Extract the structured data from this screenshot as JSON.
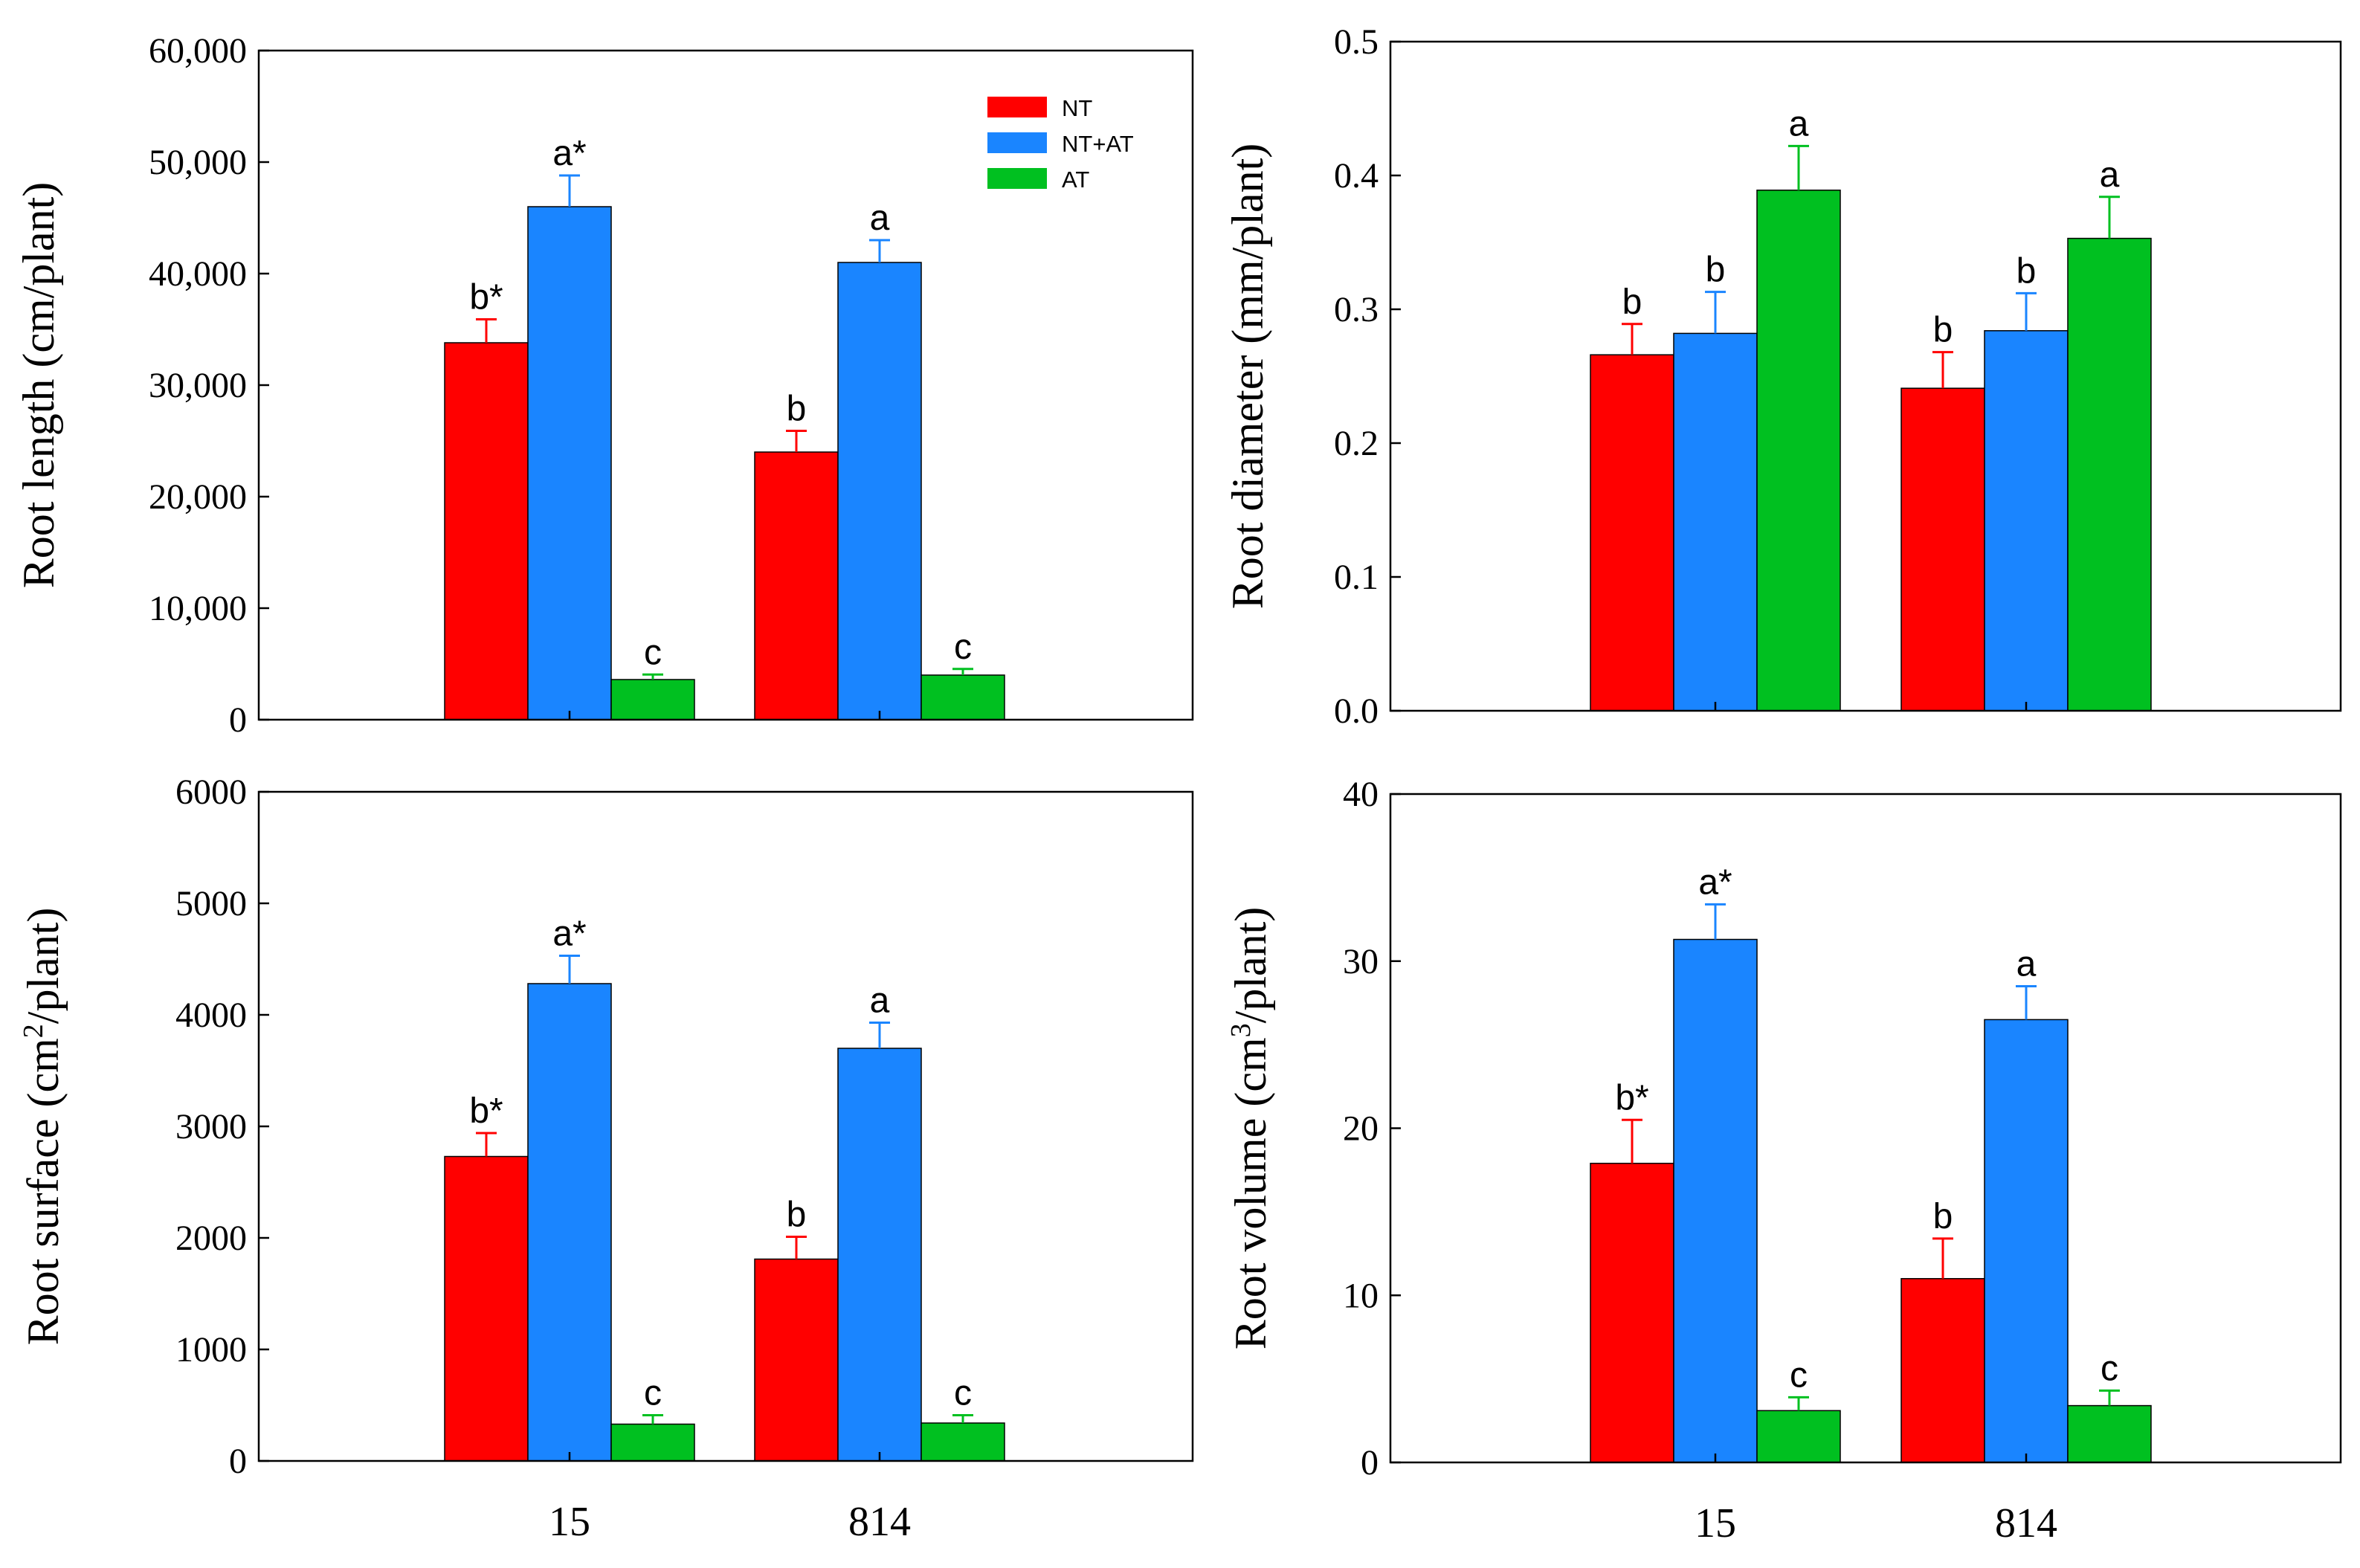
{
  "legend": [
    {
      "name": "NT",
      "color": "#ff0000"
    },
    {
      "name": "NT+AT",
      "color": "#1a85ff"
    },
    {
      "name": "AT",
      "color": "#00c020"
    }
  ],
  "chart_data": [
    {
      "type": "bar",
      "id": "root-length",
      "ylabel": "Root length (cm/plant)",
      "ylabel_parts": [
        "Root length (cm/plant)"
      ],
      "ylim": [
        0,
        60000
      ],
      "yticks": [
        0,
        10000,
        20000,
        30000,
        40000,
        50000,
        60000
      ],
      "ytick_labels": [
        "0",
        "10,000",
        "20,000",
        "30,000",
        "40,000",
        "50,000",
        "60,000"
      ],
      "categories": [
        "15",
        "814"
      ],
      "show_xticklabels": false,
      "show_legend": true,
      "series": [
        {
          "name": "NT",
          "values": [
            33800,
            24000
          ],
          "errors": [
            2100,
            1900
          ],
          "labels": [
            "b*",
            "b"
          ]
        },
        {
          "name": "NT+AT",
          "values": [
            46000,
            41000
          ],
          "errors": [
            2800,
            2000
          ],
          "labels": [
            "a*",
            "a"
          ]
        },
        {
          "name": "AT",
          "values": [
            3600,
            4000
          ],
          "errors": [
            450,
            550
          ],
          "labels": [
            "c",
            "c"
          ]
        }
      ]
    },
    {
      "type": "bar",
      "id": "root-diameter",
      "ylabel": "Root diameter (mm/plant)",
      "ylabel_parts": [
        "Root diameter (mm/plant)"
      ],
      "ylim": [
        0,
        0.5
      ],
      "yticks": [
        0,
        0.1,
        0.2,
        0.3,
        0.4,
        0.5
      ],
      "ytick_labels": [
        "0.0",
        "0.1",
        "0.2",
        "0.3",
        "0.4",
        "0.5"
      ],
      "categories": [
        "15",
        "814"
      ],
      "show_xticklabels": false,
      "show_legend": false,
      "series": [
        {
          "name": "NT",
          "values": [
            0.266,
            0.241
          ],
          "errors": [
            0.023,
            0.027
          ],
          "labels": [
            "b",
            "b"
          ]
        },
        {
          "name": "NT+AT",
          "values": [
            0.282,
            0.284
          ],
          "errors": [
            0.031,
            0.028
          ],
          "labels": [
            "b",
            "b"
          ]
        },
        {
          "name": "AT",
          "values": [
            0.389,
            0.353
          ],
          "errors": [
            0.033,
            0.031
          ],
          "labels": [
            "a",
            "a"
          ]
        }
      ]
    },
    {
      "type": "bar",
      "id": "root-surface",
      "ylabel": "Root surface (cm2/plant)",
      "ylabel_parts": [
        "Root surface (cm",
        "2",
        "/plant)"
      ],
      "ylim": [
        0,
        6000
      ],
      "yticks": [
        0,
        1000,
        2000,
        3000,
        4000,
        5000,
        6000
      ],
      "ytick_labels": [
        "0",
        "1000",
        "2000",
        "3000",
        "4000",
        "5000",
        "6000"
      ],
      "categories": [
        "15",
        "814"
      ],
      "show_xticklabels": true,
      "show_legend": false,
      "series": [
        {
          "name": "NT",
          "values": [
            2730,
            1810
          ],
          "errors": [
            210,
            200
          ],
          "labels": [
            "b*",
            "b"
          ]
        },
        {
          "name": "NT+AT",
          "values": [
            4280,
            3700
          ],
          "errors": [
            250,
            230
          ],
          "labels": [
            "a*",
            "a"
          ]
        },
        {
          "name": "AT",
          "values": [
            330,
            340
          ],
          "errors": [
            80,
            70
          ],
          "labels": [
            "c",
            "c"
          ]
        }
      ]
    },
    {
      "type": "bar",
      "id": "root-volume",
      "ylabel": "Root volume (cm3/plant)",
      "ylabel_parts": [
        "Root volume (cm",
        "3",
        "/plant)"
      ],
      "ylim": [
        0,
        40
      ],
      "yticks": [
        0,
        10,
        20,
        30,
        40
      ],
      "ytick_labels": [
        "0",
        "10",
        "20",
        "30",
        "40"
      ],
      "categories": [
        "15",
        "814"
      ],
      "show_xticklabels": true,
      "show_legend": false,
      "series": [
        {
          "name": "NT",
          "values": [
            17.9,
            11.0
          ],
          "errors": [
            2.6,
            2.4
          ],
          "labels": [
            "b*",
            "b"
          ]
        },
        {
          "name": "NT+AT",
          "values": [
            31.3,
            26.5
          ],
          "errors": [
            2.1,
            2.0
          ],
          "labels": [
            "a*",
            "a"
          ]
        },
        {
          "name": "AT",
          "values": [
            3.1,
            3.4
          ],
          "errors": [
            0.8,
            0.9
          ],
          "labels": [
            "c",
            "c"
          ]
        }
      ]
    }
  ]
}
